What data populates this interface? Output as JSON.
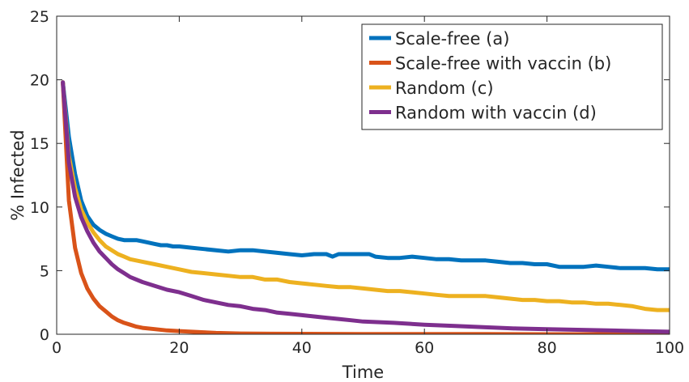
{
  "chart_data": {
    "type": "line",
    "xlabel": "Time",
    "ylabel": "% Infected",
    "xlim": [
      0,
      100
    ],
    "ylim": [
      0,
      25
    ],
    "xticks": [
      0,
      20,
      40,
      60,
      80,
      100
    ],
    "yticks": [
      0,
      5,
      10,
      15,
      20,
      25
    ],
    "grid": false,
    "legend_position": "top-right",
    "series": [
      {
        "name": "Scale-free (a)",
        "color": "#0072BD",
        "x": [
          1,
          2,
          3,
          4,
          5,
          6,
          7,
          8,
          9,
          10,
          11,
          12,
          13,
          14,
          15,
          16,
          17,
          18,
          19,
          20,
          22,
          24,
          26,
          28,
          30,
          32,
          34,
          36,
          38,
          40,
          42,
          44,
          45,
          46,
          48,
          50,
          51,
          52,
          54,
          56,
          58,
          60,
          62,
          64,
          66,
          68,
          70,
          72,
          74,
          76,
          78,
          80,
          82,
          84,
          86,
          88,
          90,
          92,
          94,
          96,
          98,
          100
        ],
        "y": [
          19.8,
          15.5,
          12.6,
          10.5,
          9.3,
          8.6,
          8.2,
          7.9,
          7.7,
          7.5,
          7.4,
          7.4,
          7.4,
          7.3,
          7.2,
          7.1,
          7.0,
          7.0,
          6.9,
          6.9,
          6.8,
          6.7,
          6.6,
          6.5,
          6.6,
          6.6,
          6.5,
          6.4,
          6.3,
          6.2,
          6.3,
          6.3,
          6.1,
          6.3,
          6.3,
          6.3,
          6.3,
          6.1,
          6.0,
          6.0,
          6.1,
          6.0,
          5.9,
          5.9,
          5.8,
          5.8,
          5.8,
          5.7,
          5.6,
          5.6,
          5.5,
          5.5,
          5.3,
          5.3,
          5.3,
          5.4,
          5.3,
          5.2,
          5.2,
          5.2,
          5.1,
          5.1
        ]
      },
      {
        "name": "Scale-free with vaccin (b)",
        "color": "#D95319",
        "x": [
          1,
          2,
          3,
          4,
          5,
          6,
          7,
          8,
          9,
          10,
          11,
          12,
          13,
          14,
          16,
          18,
          20,
          22,
          24,
          26,
          28,
          30,
          35,
          40,
          50,
          60,
          70,
          80,
          90,
          100
        ],
        "y": [
          19.8,
          10.5,
          6.8,
          4.8,
          3.6,
          2.8,
          2.2,
          1.8,
          1.4,
          1.1,
          0.9,
          0.75,
          0.6,
          0.5,
          0.4,
          0.3,
          0.25,
          0.2,
          0.15,
          0.1,
          0.08,
          0.06,
          0.04,
          0.03,
          0.02,
          0.01,
          0.01,
          0.0,
          0.0,
          0.0
        ]
      },
      {
        "name": "Random (c)",
        "color": "#EDB120",
        "x": [
          1,
          2,
          3,
          4,
          5,
          6,
          7,
          8,
          9,
          10,
          11,
          12,
          14,
          16,
          18,
          20,
          22,
          24,
          26,
          28,
          30,
          32,
          34,
          36,
          38,
          40,
          42,
          44,
          46,
          48,
          50,
          52,
          54,
          56,
          58,
          60,
          62,
          64,
          66,
          68,
          70,
          72,
          74,
          76,
          78,
          80,
          82,
          84,
          86,
          88,
          90,
          92,
          94,
          96,
          98,
          100
        ],
        "y": [
          19.8,
          14.0,
          11.5,
          9.8,
          8.8,
          8.0,
          7.4,
          6.9,
          6.6,
          6.3,
          6.1,
          5.9,
          5.7,
          5.5,
          5.3,
          5.1,
          4.9,
          4.8,
          4.7,
          4.6,
          4.5,
          4.5,
          4.3,
          4.3,
          4.1,
          4.0,
          3.9,
          3.8,
          3.7,
          3.7,
          3.6,
          3.5,
          3.4,
          3.4,
          3.3,
          3.2,
          3.1,
          3.0,
          3.0,
          3.0,
          3.0,
          2.9,
          2.8,
          2.7,
          2.7,
          2.6,
          2.6,
          2.5,
          2.5,
          2.4,
          2.4,
          2.3,
          2.2,
          2.0,
          1.9,
          1.9
        ]
      },
      {
        "name": "Random with vaccin (d)",
        "color": "#7E2F8E",
        "x": [
          1,
          2,
          3,
          4,
          5,
          6,
          7,
          8,
          9,
          10,
          11,
          12,
          14,
          16,
          18,
          20,
          22,
          24,
          26,
          28,
          30,
          32,
          34,
          36,
          38,
          40,
          42,
          44,
          46,
          48,
          50,
          55,
          60,
          65,
          70,
          75,
          80,
          85,
          90,
          95,
          100
        ],
        "y": [
          19.8,
          13.5,
          10.8,
          9.2,
          8.1,
          7.2,
          6.5,
          6.0,
          5.5,
          5.1,
          4.8,
          4.5,
          4.1,
          3.8,
          3.5,
          3.3,
          3.0,
          2.7,
          2.5,
          2.3,
          2.2,
          2.0,
          1.9,
          1.7,
          1.6,
          1.5,
          1.4,
          1.3,
          1.2,
          1.1,
          1.0,
          0.9,
          0.75,
          0.65,
          0.55,
          0.45,
          0.4,
          0.35,
          0.3,
          0.25,
          0.2
        ]
      }
    ]
  }
}
